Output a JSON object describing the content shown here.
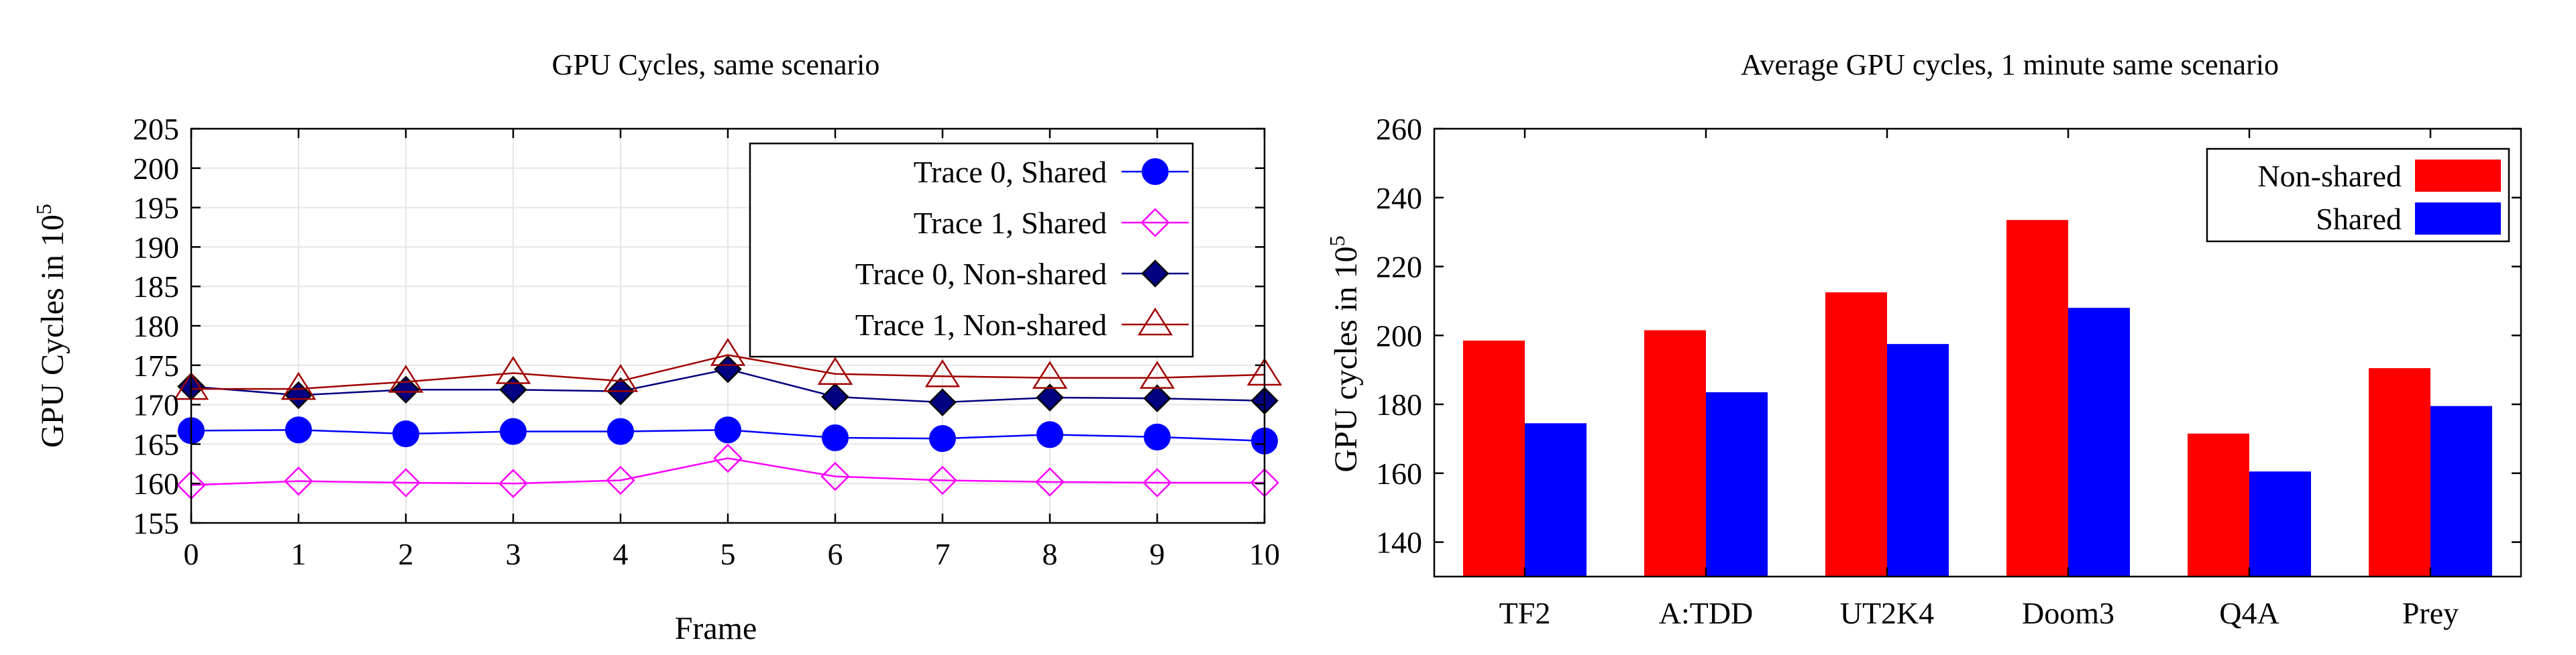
{
  "chart_data": [
    {
      "type": "line",
      "title": "GPU Cycles, same scenario",
      "xlabel": "Frame",
      "ylabel": "GPU Cycles in 10",
      "ylabel_sup": "5",
      "x": [
        0,
        1,
        2,
        3,
        4,
        5,
        6,
        7,
        8,
        9,
        10
      ],
      "xlim": [
        0,
        10
      ],
      "ylim": [
        155,
        205
      ],
      "yticks": [
        155,
        160,
        165,
        170,
        175,
        180,
        185,
        190,
        195,
        200,
        205
      ],
      "grid": true,
      "legend_position": "top-right",
      "series": [
        {
          "name": "Trace 0, Shared",
          "color": "#0000ff",
          "marker": "circle",
          "values": [
            166.7,
            166.8,
            166.3,
            166.6,
            166.6,
            166.8,
            165.8,
            165.7,
            166.2,
            165.9,
            165.4
          ]
        },
        {
          "name": "Trace 1, Shared",
          "color": "#ff00ff",
          "marker": "diamond-open",
          "values": [
            159.8,
            160.3,
            160.1,
            160.0,
            160.4,
            163.2,
            160.9,
            160.4,
            160.2,
            160.1,
            160.1
          ]
        },
        {
          "name": "Trace 0, Non-shared",
          "color": "#000080",
          "marker": "diamond",
          "values": [
            172.3,
            171.2,
            171.9,
            171.9,
            171.7,
            174.5,
            171.0,
            170.3,
            170.9,
            170.8,
            170.5
          ]
        },
        {
          "name": "Trace 1, Non-shared",
          "color": "#a00000",
          "marker": "triangle-open",
          "values": [
            172.0,
            172.0,
            172.9,
            174.0,
            173.0,
            176.3,
            173.9,
            173.6,
            173.4,
            173.4,
            173.8
          ]
        }
      ]
    },
    {
      "type": "bar",
      "title": "Average GPU cycles, 1 minute same scenario",
      "xlabel": "",
      "ylabel": "GPU cycles in 10",
      "ylabel_sup": "5",
      "categories": [
        "TF2",
        "A:TDD",
        "UT2K4",
        "Doom3",
        "Q4A",
        "Prey"
      ],
      "ylim": [
        130,
        260
      ],
      "yticks": [
        140,
        160,
        180,
        200,
        220,
        240,
        260
      ],
      "grid": false,
      "legend_position": "top-right",
      "series": [
        {
          "name": "Non-shared",
          "color": "#ff0000",
          "values": [
            198.5,
            201.5,
            212.5,
            233.5,
            171.5,
            190.5
          ]
        },
        {
          "name": "Shared",
          "color": "#0000ff",
          "values": [
            174.5,
            183.5,
            197.5,
            208.0,
            160.5,
            179.5
          ]
        }
      ]
    }
  ]
}
